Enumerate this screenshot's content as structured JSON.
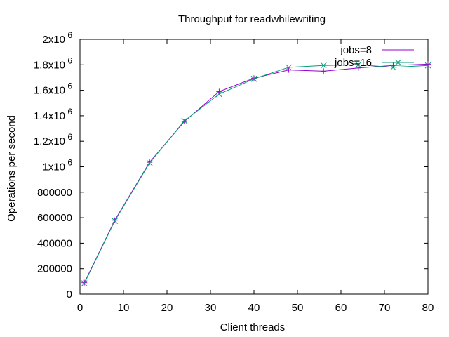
{
  "chart_data": {
    "type": "line",
    "title": "Throughput for readwhilewriting",
    "xlabel": "Client threads",
    "ylabel": "Operations per second",
    "xlim": [
      0,
      80
    ],
    "ylim": [
      0,
      2000000
    ],
    "grid": false,
    "legend_position": "top-right",
    "x_ticks": [
      {
        "value": 0,
        "label": "0"
      },
      {
        "value": 10,
        "label": "10"
      },
      {
        "value": 20,
        "label": "20"
      },
      {
        "value": 30,
        "label": "30"
      },
      {
        "value": 40,
        "label": "40"
      },
      {
        "value": 50,
        "label": "50"
      },
      {
        "value": 60,
        "label": "60"
      },
      {
        "value": 70,
        "label": "70"
      },
      {
        "value": 80,
        "label": "80"
      }
    ],
    "y_ticks": [
      {
        "value": 0,
        "label": "0"
      },
      {
        "value": 200000,
        "label": "200000"
      },
      {
        "value": 400000,
        "label": "400000"
      },
      {
        "value": 600000,
        "label": "600000"
      },
      {
        "value": 800000,
        "label": "800000"
      },
      {
        "value": 1000000,
        "label": "1x10",
        "exp": "6"
      },
      {
        "value": 1200000,
        "label": "1.2x10",
        "exp": "6"
      },
      {
        "value": 1400000,
        "label": "1.4x10",
        "exp": "6"
      },
      {
        "value": 1600000,
        "label": "1.6x10",
        "exp": "6"
      },
      {
        "value": 1800000,
        "label": "1.8x10",
        "exp": "6"
      },
      {
        "value": 2000000,
        "label": "2x10",
        "exp": "6"
      }
    ],
    "series": [
      {
        "name": "jobs=8",
        "color": "#9400d3",
        "marker": "plus",
        "x": [
          1,
          8,
          16,
          24,
          32,
          40,
          48,
          56,
          64,
          72,
          80
        ],
        "y": [
          90000,
          580000,
          1035000,
          1355000,
          1590000,
          1695000,
          1760000,
          1750000,
          1775000,
          1795000,
          1805000
        ]
      },
      {
        "name": "jobs=16",
        "color": "#009e73",
        "marker": "cross",
        "x": [
          1,
          8,
          16,
          24,
          32,
          40,
          48,
          56,
          64,
          72,
          80
        ],
        "y": [
          85000,
          575000,
          1030000,
          1360000,
          1570000,
          1690000,
          1780000,
          1795000,
          1800000,
          1780000,
          1795000
        ]
      }
    ]
  }
}
